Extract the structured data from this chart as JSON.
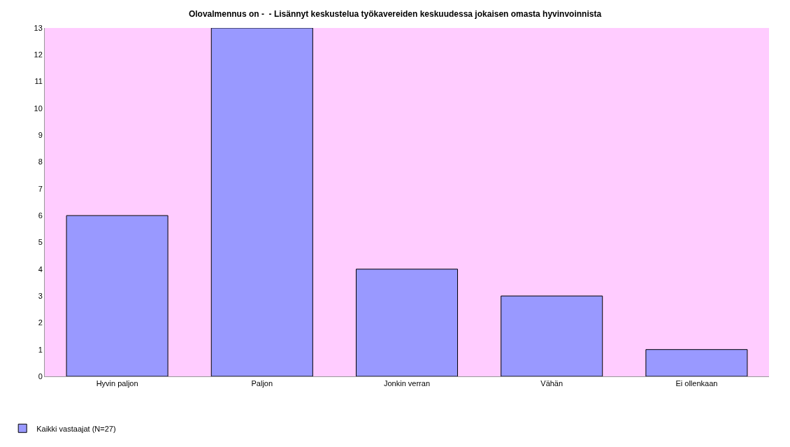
{
  "chart_data": {
    "type": "bar",
    "title": "Olovalmennus on -  - Lisännyt keskustelua työkavereiden keskuudessa jokaisen omasta hyvinvoinnista",
    "categories": [
      "Hyvin paljon",
      "Paljon",
      "Jonkin verran",
      "Vähän",
      "Ei ollenkaan"
    ],
    "series": [
      {
        "name": "Kaikki vastaajat (N=27)",
        "color": "#9999ff",
        "values": [
          6,
          13,
          4,
          3,
          1
        ]
      }
    ],
    "ylim": [
      0,
      13
    ],
    "yticks": [
      0,
      1,
      2,
      3,
      4,
      5,
      6,
      7,
      8,
      9,
      10,
      11,
      12,
      13
    ],
    "grid": false,
    "legend": "bottom left"
  }
}
